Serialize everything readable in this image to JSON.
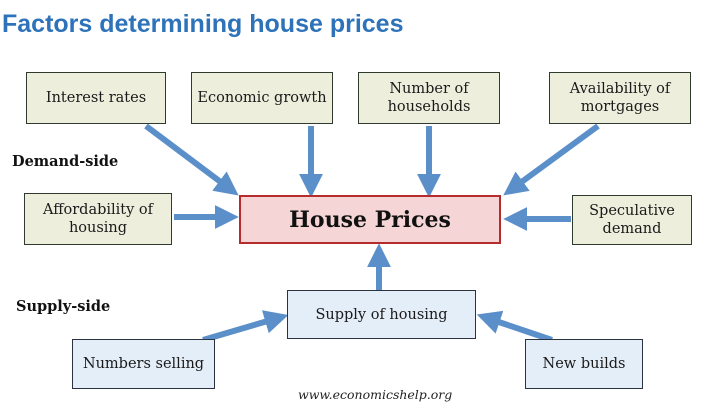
{
  "title": "Factors determining house prices",
  "labels": {
    "demand_side": "Demand-side",
    "supply_side": "Supply-side"
  },
  "center": "House Prices",
  "demand_factors": {
    "interest_rates": "Interest rates",
    "economic_growth": "Economic growth",
    "number_of_households": "Number of households",
    "availability_of_mortgages": "Availability of mortgages",
    "affordability_of_housing": "Affordability of housing",
    "speculative_demand": "Speculative demand"
  },
  "supply_factors": {
    "supply_of_housing": "Supply of housing",
    "numbers_selling": "Numbers selling",
    "new_builds": "New builds"
  },
  "source": "www.economicshelp.org",
  "colors": {
    "title": "#2e73b9",
    "arrow": "#5b8fc9",
    "center_fill": "#f5d5d5",
    "center_border": "#b42c2c",
    "demand_fill": "#eeeedd",
    "supply_fill": "#e4eef8"
  }
}
